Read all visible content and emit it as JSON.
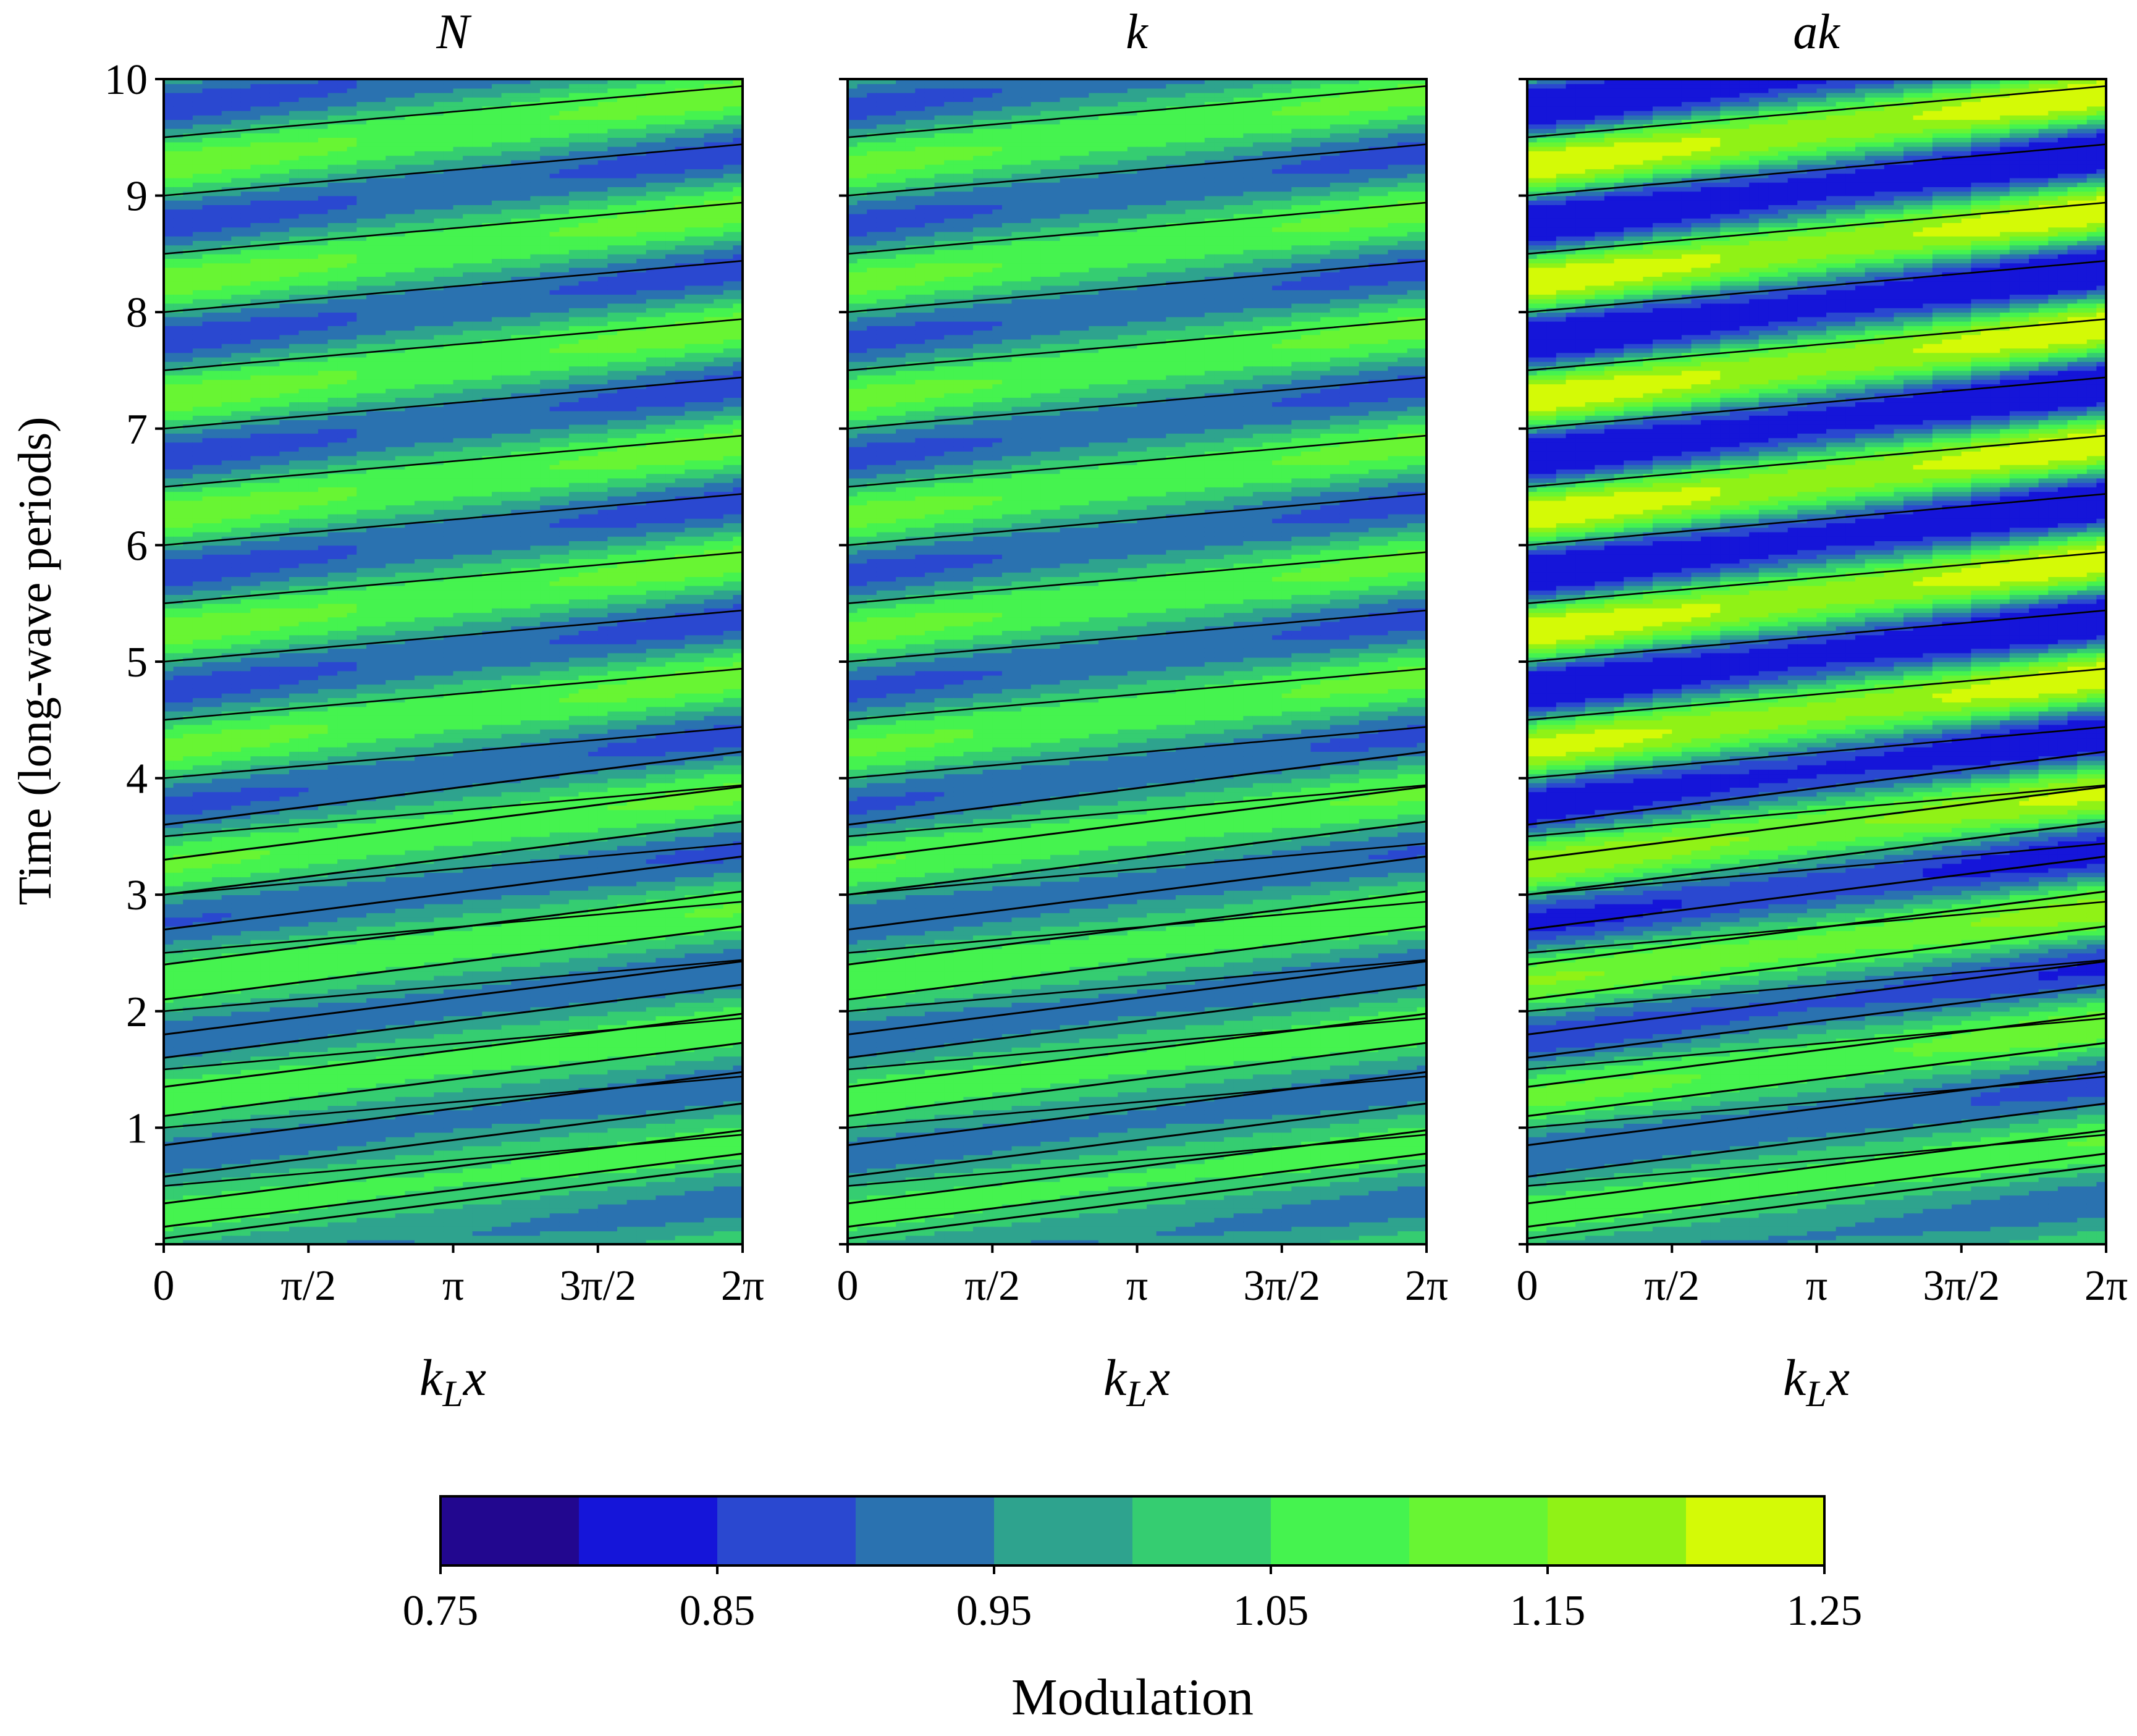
{
  "chart_data": {
    "type": "heatmap",
    "variant": "filled-contour",
    "ylabel": "Time  (long-wave periods)",
    "xlabel": "k_L x",
    "xlim": [
      0,
      6.283185
    ],
    "ylim": [
      0,
      10
    ],
    "x_ticks": [
      {
        "value": 0,
        "label": "0"
      },
      {
        "value": 1.570796,
        "label": "π/2"
      },
      {
        "value": 3.141593,
        "label": "π"
      },
      {
        "value": 4.712389,
        "label": "3π/2"
      },
      {
        "value": 6.283185,
        "label": "2π"
      }
    ],
    "y_ticks": [
      {
        "value": 0,
        "label": ""
      },
      {
        "value": 1,
        "label": "1"
      },
      {
        "value": 2,
        "label": "2"
      },
      {
        "value": 3,
        "label": "3"
      },
      {
        "value": 4,
        "label": "4"
      },
      {
        "value": 5,
        "label": "5"
      },
      {
        "value": 6,
        "label": "6"
      },
      {
        "value": 7,
        "label": "7"
      },
      {
        "value": 8,
        "label": "8"
      },
      {
        "value": 9,
        "label": "9"
      },
      {
        "value": 10,
        "label": "10"
      }
    ],
    "grid": false,
    "colorbar": {
      "label": "Modulation",
      "orientation": "horizontal",
      "placement": "bottom",
      "levels": [
        0.75,
        0.8,
        0.85,
        0.9,
        0.95,
        1.0,
        1.05,
        1.1,
        1.15,
        1.2,
        1.25
      ],
      "tick_values": [
        0.75,
        0.85,
        0.95,
        1.05,
        1.15,
        1.25
      ],
      "tick_labels": [
        "0.75",
        "0.85",
        "0.95",
        "1.05",
        "1.15",
        "1.25"
      ],
      "colors": [
        "#22078f",
        "#1515d9",
        "#2a48d0",
        "#2a72b0",
        "#2ea38e",
        "#35cd71",
        "#45f34f",
        "#68f533",
        "#90f216",
        "#d4fa06"
      ]
    },
    "panels": [
      {
        "title": "N",
        "t_crossings": [
          0.05,
          0.15,
          0.35,
          0.58,
          0.85,
          1.1,
          1.35,
          1.6,
          1.8,
          2.1,
          2.4,
          2.7,
          3.0,
          3.3,
          3.6
        ],
        "characteristic_slope": 0.1,
        "modulation_amplitude": [
          0.07,
          0.13
        ],
        "min_value": 0.82,
        "max_value": 1.14
      },
      {
        "title": "k",
        "t_crossings": [
          0.05,
          0.15,
          0.35,
          0.58,
          0.85,
          1.1,
          1.35,
          1.6,
          1.8,
          2.1,
          2.4,
          2.7,
          3.0,
          3.3,
          3.6
        ],
        "characteristic_slope": 0.1,
        "modulation_amplitude": [
          0.07,
          0.12
        ],
        "min_value": 0.85,
        "max_value": 1.13
      },
      {
        "title": "ak",
        "t_crossings": [
          0.05,
          0.15,
          0.35,
          0.58,
          0.85,
          1.1,
          1.35,
          1.6,
          1.8,
          2.1,
          2.4,
          2.7,
          3.0,
          3.3,
          3.6
        ],
        "characteristic_slope": 0.1,
        "modulation_amplitude": [
          0.07,
          0.26
        ],
        "min_value": 0.82,
        "max_value": 1.25
      }
    ]
  }
}
